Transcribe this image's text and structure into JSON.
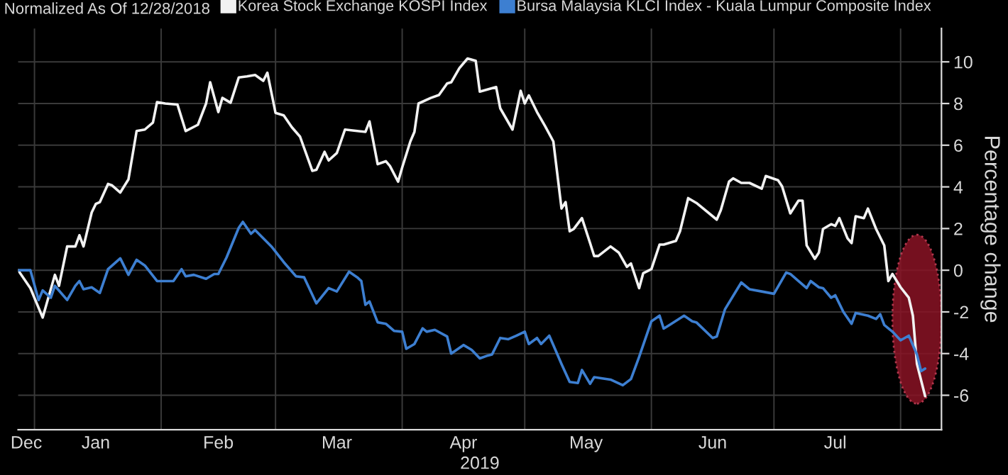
{
  "chart_data": {
    "type": "line",
    "title": "Normalized As Of 12/28/2018",
    "xlabel": "2019",
    "ylabel": "Percentage change",
    "xlim": [
      "2018-12-28",
      "2019-08-11"
    ],
    "xticks": [
      {
        "value": "2019-01-01",
        "label": null
      },
      {
        "value": "2019-02-01",
        "label": null
      },
      {
        "value": "2019-03-01",
        "label": null
      },
      {
        "value": "2019-04-01",
        "label": null
      },
      {
        "value": "2019-05-01",
        "label": null
      },
      {
        "value": "2019-06-01",
        "label": null
      },
      {
        "value": "2019-07-01",
        "label": null
      },
      {
        "value": "2019-08-01",
        "label": null
      },
      {
        "value": "2018-12-30",
        "label": "Dec"
      },
      {
        "value": "2019-01-16",
        "label": "Jan"
      },
      {
        "value": "2019-02-15",
        "label": "Feb"
      },
      {
        "value": "2019-03-16",
        "label": "Mar"
      },
      {
        "value": "2019-04-16",
        "label": "Apr"
      },
      {
        "value": "2019-05-16",
        "label": "May"
      },
      {
        "value": "2019-06-16",
        "label": "Jun"
      },
      {
        "value": "2019-07-16",
        "label": "Jul"
      }
    ],
    "ylim": [
      -7.65,
      11.6
    ],
    "yticks": [
      -6,
      -4,
      -2,
      0,
      2,
      4,
      6,
      8,
      10
    ],
    "grid": true,
    "legend": "top",
    "line_style": "solid",
    "series": [
      {
        "name": "Korea Stock Exchange KOSPI Index",
        "color": "#f2f2f2",
        "x": [
          "2018-12-28",
          "2018-12-31",
          "2019-01-03",
          "2019-01-06",
          "2019-01-07",
          "2019-01-09",
          "2019-01-11",
          "2019-01-12",
          "2019-01-13",
          "2019-01-15",
          "2019-01-16",
          "2019-01-17",
          "2019-01-19",
          "2019-01-20",
          "2019-01-22",
          "2019-01-24",
          "2019-01-26",
          "2019-01-28",
          "2019-01-30",
          "2019-01-31",
          "2019-02-02",
          "2019-02-05",
          "2019-02-07",
          "2019-02-10",
          "2019-02-12",
          "2019-02-13",
          "2019-02-15",
          "2019-02-16",
          "2019-02-18",
          "2019-02-20",
          "2019-02-22",
          "2019-02-24",
          "2019-02-26",
          "2019-02-27",
          "2019-03-01",
          "2019-03-03",
          "2019-03-05",
          "2019-03-07",
          "2019-03-10",
          "2019-03-11",
          "2019-03-13",
          "2019-03-14",
          "2019-03-16",
          "2019-03-18",
          "2019-03-21",
          "2019-03-23",
          "2019-03-24",
          "2019-03-26",
          "2019-03-28",
          "2019-03-29",
          "2019-03-31",
          "2019-04-01",
          "2019-04-03",
          "2019-04-04",
          "2019-04-05",
          "2019-04-08",
          "2019-04-10",
          "2019-04-12",
          "2019-04-13",
          "2019-04-15",
          "2019-04-17",
          "2019-04-19",
          "2019-04-20",
          "2019-04-22",
          "2019-04-24",
          "2019-04-25",
          "2019-04-28",
          "2019-04-30",
          "2019-05-01",
          "2019-05-02",
          "2019-05-04",
          "2019-05-06",
          "2019-05-08",
          "2019-05-10",
          "2019-05-11",
          "2019-05-12",
          "2019-05-13",
          "2019-05-15",
          "2019-05-17",
          "2019-05-18",
          "2019-05-19",
          "2019-05-22",
          "2019-05-24",
          "2019-05-26",
          "2019-05-27",
          "2019-05-29",
          "2019-05-30",
          "2019-06-01",
          "2019-06-03",
          "2019-06-04",
          "2019-06-07",
          "2019-06-08",
          "2019-06-10",
          "2019-06-12",
          "2019-06-17",
          "2019-06-18",
          "2019-06-20",
          "2019-06-21",
          "2019-06-23",
          "2019-06-25",
          "2019-06-28",
          "2019-06-29",
          "2019-07-02",
          "2019-07-03",
          "2019-07-05",
          "2019-07-07",
          "2019-07-08",
          "2019-07-09",
          "2019-07-11",
          "2019-07-12",
          "2019-07-13",
          "2019-07-15",
          "2019-07-16",
          "2019-07-17",
          "2019-07-19",
          "2019-07-20",
          "2019-07-21",
          "2019-07-23",
          "2019-07-24",
          "2019-07-26",
          "2019-07-28",
          "2019-07-29",
          "2019-07-30",
          "2019-08-01",
          "2019-08-03",
          "2019-08-04",
          "2019-08-05",
          "2019-08-07"
        ],
        "values": [
          0.0,
          -0.86,
          -2.27,
          -0.22,
          -0.75,
          1.14,
          1.14,
          1.68,
          1.14,
          2.77,
          3.18,
          3.27,
          4.14,
          4.07,
          3.73,
          4.36,
          6.68,
          6.75,
          7.09,
          8.07,
          8.0,
          7.95,
          6.68,
          6.98,
          8.0,
          9.02,
          7.59,
          8.27,
          8.04,
          9.25,
          9.3,
          9.37,
          9.09,
          9.48,
          7.55,
          7.43,
          6.86,
          6.41,
          4.77,
          4.82,
          5.68,
          5.27,
          5.62,
          6.75,
          6.68,
          6.64,
          7.14,
          5.09,
          5.23,
          5.0,
          4.25,
          4.93,
          6.18,
          6.64,
          8.0,
          8.27,
          8.41,
          8.96,
          9.02,
          9.7,
          10.16,
          10.05,
          8.57,
          8.68,
          8.79,
          7.77,
          6.75,
          8.61,
          8.0,
          8.39,
          7.59,
          6.91,
          6.18,
          2.96,
          3.27,
          1.87,
          1.98,
          2.5,
          1.3,
          0.68,
          0.68,
          1.14,
          0.85,
          0.16,
          0.32,
          -0.86,
          -0.14,
          0.05,
          1.23,
          1.23,
          1.41,
          1.87,
          3.46,
          3.23,
          2.43,
          2.89,
          4.25,
          4.41,
          4.19,
          4.19,
          3.91,
          4.52,
          4.32,
          4.02,
          2.73,
          3.34,
          3.34,
          1.19,
          0.55,
          0.85,
          1.98,
          2.21,
          2.13,
          2.5,
          1.53,
          1.3,
          2.59,
          2.5,
          2.96,
          1.98,
          1.19,
          -0.52,
          -0.18,
          -0.82,
          -1.32,
          -2.18,
          -4.5,
          -6.04
        ]
      },
      {
        "name": "Bursa Malaysia KLCI Index - Kuala Lumpur Composite Index",
        "color": "#3d7fd1",
        "x": [
          "2018-12-28",
          "2018-12-31",
          "2019-01-02",
          "2019-01-03",
          "2019-01-05",
          "2019-01-06",
          "2019-01-09",
          "2019-01-11",
          "2019-01-12",
          "2019-01-13",
          "2019-01-15",
          "2019-01-17",
          "2019-01-19",
          "2019-01-22",
          "2019-01-24",
          "2019-01-26",
          "2019-01-28",
          "2019-01-31",
          "2019-02-04",
          "2019-02-06",
          "2019-02-07",
          "2019-02-09",
          "2019-02-12",
          "2019-02-14",
          "2019-02-15",
          "2019-02-17",
          "2019-02-20",
          "2019-02-21",
          "2019-02-23",
          "2019-02-24",
          "2019-02-28",
          "2019-03-03",
          "2019-03-06",
          "2019-03-08",
          "2019-03-11",
          "2019-03-14",
          "2019-03-16",
          "2019-03-19",
          "2019-03-21",
          "2019-03-22",
          "2019-03-23",
          "2019-03-24",
          "2019-03-26",
          "2019-03-28",
          "2019-03-30",
          "2019-04-01",
          "2019-04-02",
          "2019-04-04",
          "2019-04-06",
          "2019-04-07",
          "2019-04-09",
          "2019-04-12",
          "2019-04-13",
          "2019-04-16",
          "2019-04-18",
          "2019-04-20",
          "2019-04-22",
          "2019-04-23",
          "2019-04-25",
          "2019-04-27",
          "2019-04-29",
          "2019-05-01",
          "2019-05-02",
          "2019-05-04",
          "2019-05-05",
          "2019-05-07",
          "2019-05-08",
          "2019-05-10",
          "2019-05-12",
          "2019-05-14",
          "2019-05-15",
          "2019-05-17",
          "2019-05-18",
          "2019-05-22",
          "2019-05-25",
          "2019-05-27",
          "2019-05-29",
          "2019-06-01",
          "2019-06-03",
          "2019-06-04",
          "2019-06-05",
          "2019-06-09",
          "2019-06-11",
          "2019-06-12",
          "2019-06-16",
          "2019-06-17",
          "2019-06-19",
          "2019-06-23",
          "2019-06-25",
          "2019-06-28",
          "2019-07-01",
          "2019-07-04",
          "2019-07-05",
          "2019-07-09",
          "2019-07-10",
          "2019-07-12",
          "2019-07-13",
          "2019-07-15",
          "2019-07-16",
          "2019-07-18",
          "2019-07-20",
          "2019-07-21",
          "2019-07-24",
          "2019-07-26",
          "2019-07-27",
          "2019-07-28",
          "2019-07-30",
          "2019-08-01",
          "2019-08-03",
          "2019-08-05",
          "2019-08-06",
          "2019-08-07"
        ],
        "values": [
          0.0,
          0.0,
          -1.43,
          -0.97,
          -1.32,
          -0.75,
          -1.43,
          -0.75,
          -0.52,
          -0.91,
          -0.82,
          -1.09,
          0.05,
          0.57,
          -0.22,
          0.5,
          0.23,
          -0.52,
          -0.52,
          0.05,
          -0.29,
          -0.22,
          -0.41,
          -0.18,
          -0.18,
          0.61,
          2.04,
          2.32,
          1.75,
          1.93,
          1.14,
          0.39,
          -0.29,
          -0.34,
          -1.59,
          -0.86,
          -1.02,
          -0.07,
          -0.34,
          -0.52,
          -1.66,
          -1.5,
          -2.5,
          -2.57,
          -2.91,
          -2.95,
          -3.77,
          -3.54,
          -2.79,
          -2.95,
          -2.86,
          -3.18,
          -4.0,
          -3.59,
          -3.82,
          -4.23,
          -4.09,
          -4.04,
          -3.25,
          -3.31,
          -3.14,
          -2.95,
          -3.54,
          -3.25,
          -3.54,
          -3.14,
          -3.59,
          -4.5,
          -5.36,
          -5.41,
          -4.79,
          -5.45,
          -5.13,
          -5.25,
          -5.52,
          -5.22,
          -4.16,
          -2.45,
          -2.18,
          -2.8,
          -2.68,
          -2.18,
          -2.45,
          -2.5,
          -3.25,
          -3.18,
          -1.88,
          -0.59,
          -0.91,
          -1.02,
          -1.13,
          -0.11,
          -0.18,
          -0.86,
          -0.52,
          -0.82,
          -0.86,
          -1.32,
          -1.2,
          -2.0,
          -2.57,
          -2.05,
          -2.18,
          -2.34,
          -2.11,
          -2.63,
          -2.95,
          -3.36,
          -3.14,
          -4.04,
          -4.84,
          -4.72
        ]
      }
    ]
  }
}
